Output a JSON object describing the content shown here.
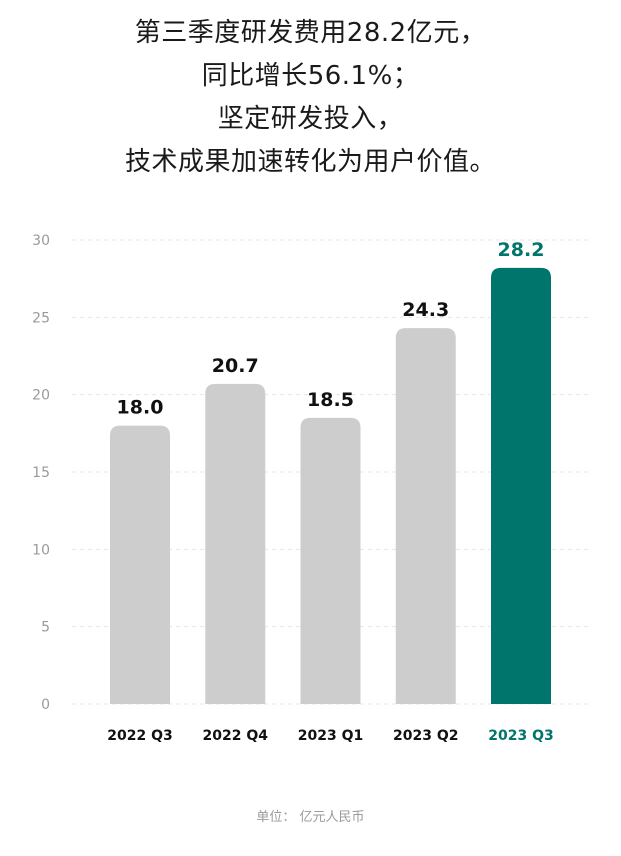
{
  "headline": {
    "lines": [
      "第三季度研发费用28.2亿元，",
      "同比增长56.1%；",
      "坚定研发投入，",
      "技术成果加速转化为用户价值。"
    ]
  },
  "chart_data": {
    "type": "bar",
    "categories": [
      "2022 Q3",
      "2022 Q4",
      "2023 Q1",
      "2023 Q2",
      "2023 Q3"
    ],
    "values": [
      18.0,
      20.7,
      18.5,
      24.3,
      28.2
    ],
    "value_labels": [
      "18.0",
      "20.7",
      "18.5",
      "24.3",
      "28.2"
    ],
    "highlight_index": 4,
    "ylim": [
      0,
      30
    ],
    "yticks": [
      "0",
      "5",
      "10",
      "15",
      "20",
      "25",
      "30"
    ],
    "grid": true,
    "colors": {
      "bar": "#cdcdcd",
      "highlight": "#00756b",
      "grid": "#e6e6e6",
      "tick": "#9a9a9a",
      "label": "#111111"
    }
  },
  "footnote": "单位： 亿元人民币"
}
